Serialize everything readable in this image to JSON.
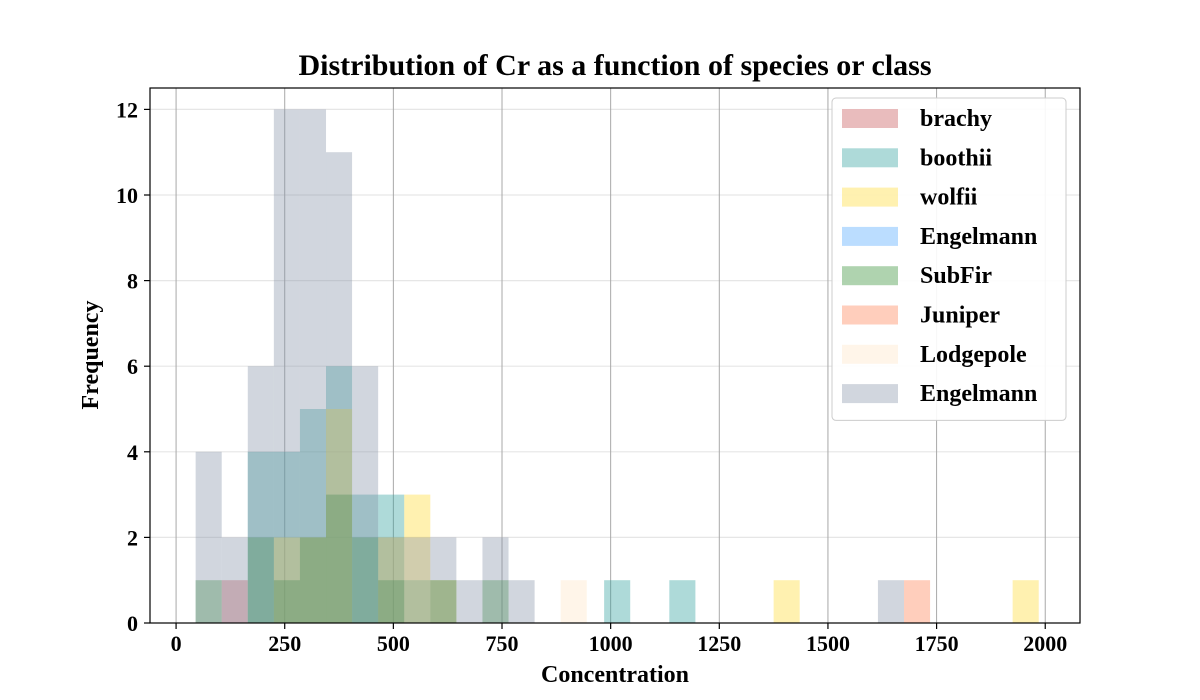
{
  "chart_data": {
    "type": "histogram",
    "title": "Distribution of Cr as a function of species or class",
    "xlabel": "Concentration",
    "ylabel": "Frequency",
    "xlim": [
      -60,
      2080
    ],
    "ylim": [
      0,
      12.5
    ],
    "xticks": [
      0,
      250,
      500,
      750,
      1000,
      1250,
      1500,
      1750,
      2000
    ],
    "yticks": [
      0,
      2,
      4,
      6,
      8,
      10,
      12
    ],
    "vertical_grid": true,
    "horizontal_grid": true,
    "legend_position": "top-right",
    "opacity": 0.38,
    "series": [
      {
        "name": "brachy",
        "color": "#c44e52",
        "bins": [
          {
            "x0": 105,
            "x1": 165,
            "count": 1
          }
        ]
      },
      {
        "name": "boothii",
        "color": "#2a9d9a",
        "bins": [
          {
            "x0": 165,
            "x1": 225,
            "count": 4
          },
          {
            "x0": 225,
            "x1": 285,
            "count": 4
          },
          {
            "x0": 285,
            "x1": 345,
            "count": 5
          },
          {
            "x0": 345,
            "x1": 405,
            "count": 6
          },
          {
            "x0": 405,
            "x1": 465,
            "count": 3
          },
          {
            "x0": 465,
            "x1": 525,
            "count": 3
          },
          {
            "x0": 525,
            "x1": 585,
            "count": 1
          },
          {
            "x0": 985,
            "x1": 1045,
            "count": 1
          },
          {
            "x0": 1135,
            "x1": 1195,
            "count": 1
          }
        ]
      },
      {
        "name": "wolfii",
        "color": "#ffd92f",
        "bins": [
          {
            "x0": 225,
            "x1": 285,
            "count": 2
          },
          {
            "x0": 285,
            "x1": 345,
            "count": 2
          },
          {
            "x0": 345,
            "x1": 405,
            "count": 5
          },
          {
            "x0": 465,
            "x1": 525,
            "count": 2
          },
          {
            "x0": 525,
            "x1": 585,
            "count": 3
          },
          {
            "x0": 585,
            "x1": 645,
            "count": 1
          },
          {
            "x0": 1375,
            "x1": 1435,
            "count": 1
          },
          {
            "x0": 1925,
            "x1": 1985,
            "count": 1
          }
        ]
      },
      {
        "name": "Engelmann",
        "color": "#4da6ff",
        "bins": []
      },
      {
        "name": "SubFir",
        "color": "#2e8b2e",
        "bins": [
          {
            "x0": 45,
            "x1": 105,
            "count": 1
          },
          {
            "x0": 165,
            "x1": 225,
            "count": 2
          },
          {
            "x0": 225,
            "x1": 285,
            "count": 1
          },
          {
            "x0": 285,
            "x1": 345,
            "count": 2
          },
          {
            "x0": 345,
            "x1": 405,
            "count": 3
          },
          {
            "x0": 405,
            "x1": 465,
            "count": 2
          },
          {
            "x0": 465,
            "x1": 525,
            "count": 1
          },
          {
            "x0": 585,
            "x1": 645,
            "count": 1
          },
          {
            "x0": 705,
            "x1": 765,
            "count": 1
          }
        ]
      },
      {
        "name": "Juniper",
        "color": "#ff7f50",
        "bins": [
          {
            "x0": 1675,
            "x1": 1735,
            "count": 1
          }
        ]
      },
      {
        "name": "Lodgepole",
        "color": "#ffe4c4",
        "bins": [
          {
            "x0": 885,
            "x1": 945,
            "count": 1
          }
        ]
      },
      {
        "name": "Engelmann",
        "color": "#8592a8",
        "bins": [
          {
            "x0": 45,
            "x1": 105,
            "count": 4
          },
          {
            "x0": 105,
            "x1": 165,
            "count": 2
          },
          {
            "x0": 165,
            "x1": 225,
            "count": 6
          },
          {
            "x0": 225,
            "x1": 285,
            "count": 12
          },
          {
            "x0": 285,
            "x1": 345,
            "count": 12
          },
          {
            "x0": 345,
            "x1": 405,
            "count": 11
          },
          {
            "x0": 405,
            "x1": 465,
            "count": 6
          },
          {
            "x0": 465,
            "x1": 525,
            "count": 2
          },
          {
            "x0": 525,
            "x1": 585,
            "count": 2
          },
          {
            "x0": 585,
            "x1": 645,
            "count": 2
          },
          {
            "x0": 645,
            "x1": 705,
            "count": 1
          },
          {
            "x0": 705,
            "x1": 765,
            "count": 2
          },
          {
            "x0": 765,
            "x1": 825,
            "count": 1
          },
          {
            "x0": 1615,
            "x1": 1675,
            "count": 1
          }
        ]
      }
    ]
  }
}
